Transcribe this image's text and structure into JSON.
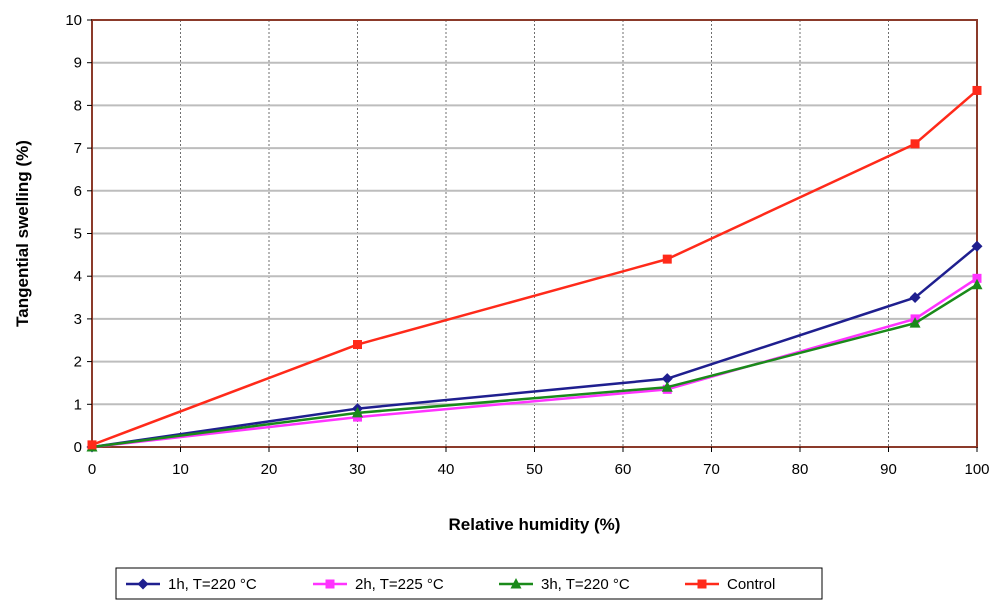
{
  "chart_data": {
    "type": "line",
    "title": "",
    "xlabel": "Relative humidity (%)",
    "ylabel": "Tangential swelling (%)",
    "xlim": [
      0,
      100
    ],
    "ylim": [
      0,
      10
    ],
    "x_ticks": [
      0,
      10,
      20,
      30,
      40,
      50,
      60,
      70,
      80,
      90,
      100
    ],
    "y_ticks": [
      0,
      1,
      2,
      3,
      4,
      5,
      6,
      7,
      8,
      9,
      10
    ],
    "grid": "on",
    "legend_position": "bottom",
    "plot_background": "#ffffff",
    "plot_border_color": "#8b3a2a",
    "series": [
      {
        "name": "1h, T=220 °C",
        "color": "#1f1f8f",
        "marker": "diamond",
        "x": [
          0,
          30,
          65,
          93,
          100
        ],
        "y": [
          0,
          0.9,
          1.6,
          3.5,
          4.7
        ]
      },
      {
        "name": "2h, T=225 °C",
        "color": "#ff33ff",
        "marker": "square",
        "x": [
          0,
          30,
          65,
          93,
          100
        ],
        "y": [
          0,
          0.7,
          1.35,
          3.0,
          3.95
        ]
      },
      {
        "name": "3h, T=220 °C",
        "color": "#1a8a1a",
        "marker": "triangle",
        "x": [
          0,
          30,
          65,
          93,
          100
        ],
        "y": [
          0,
          0.8,
          1.4,
          2.9,
          3.8
        ]
      },
      {
        "name": "Control",
        "color": "#ff2a1a",
        "marker": "square",
        "x": [
          0,
          30,
          65,
          93,
          100
        ],
        "y": [
          0.05,
          2.4,
          4.4,
          7.1,
          8.35
        ]
      }
    ]
  }
}
